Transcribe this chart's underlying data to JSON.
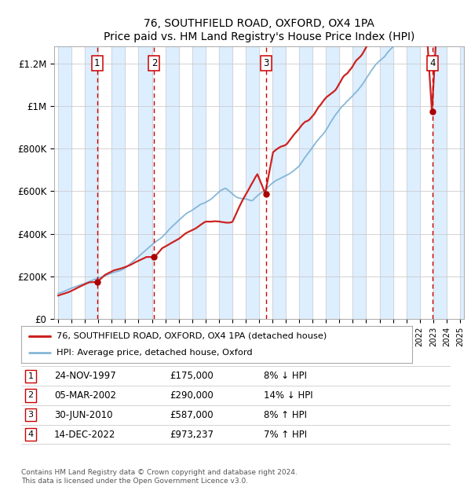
{
  "title": "76, SOUTHFIELD ROAD, OXFORD, OX4 1PA",
  "subtitle": "Price paid vs. HM Land Registry's House Price Index (HPI)",
  "ylabel_ticks": [
    "£0",
    "£200K",
    "£400K",
    "£600K",
    "£800K",
    "£1M",
    "£1.2M"
  ],
  "ytick_values": [
    0,
    200000,
    400000,
    600000,
    800000,
    1000000,
    1200000
  ],
  "ylim": [
    0,
    1280000
  ],
  "xlim_start": 1994.7,
  "xlim_end": 2025.3,
  "sale_points": [
    {
      "num": 1,
      "year": 1997.9,
      "price": 175000,
      "date": "24-NOV-1997",
      "pct": "8%",
      "dir": "↓"
    },
    {
      "num": 2,
      "year": 2002.17,
      "price": 290000,
      "date": "05-MAR-2002",
      "pct": "14%",
      "dir": "↓"
    },
    {
      "num": 3,
      "year": 2010.5,
      "price": 587000,
      "date": "30-JUN-2010",
      "pct": "8%",
      "dir": "↑"
    },
    {
      "num": 4,
      "year": 2022.95,
      "price": 973237,
      "date": "14-DEC-2022",
      "pct": "7%",
      "dir": "↑"
    }
  ],
  "legend_entries": [
    {
      "label": "76, SOUTHFIELD ROAD, OXFORD, OX4 1PA (detached house)",
      "color": "#cc0000",
      "lw": 2
    },
    {
      "label": "HPI: Average price, detached house, Oxford",
      "color": "#6699cc",
      "lw": 1.5
    }
  ],
  "table_rows": [
    {
      "num": 1,
      "date": "24-NOV-1997",
      "price": "£175,000",
      "pct": "8% ↓ HPI"
    },
    {
      "num": 2,
      "date": "05-MAR-2002",
      "price": "£290,000",
      "pct": "14% ↓ HPI"
    },
    {
      "num": 3,
      "date": "30-JUN-2010",
      "price": "£587,000",
      "pct": "8% ↑ HPI"
    },
    {
      "num": 4,
      "date": "14-DEC-2022",
      "price": "£973,237",
      "pct": "7% ↑ HPI"
    }
  ],
  "footer": "Contains HM Land Registry data © Crown copyright and database right 2024.\nThis data is licensed under the Open Government Licence v3.0.",
  "plot_bg": "#ffffff",
  "vline_color": "#cc0000",
  "shade_color": "#ddeeff"
}
